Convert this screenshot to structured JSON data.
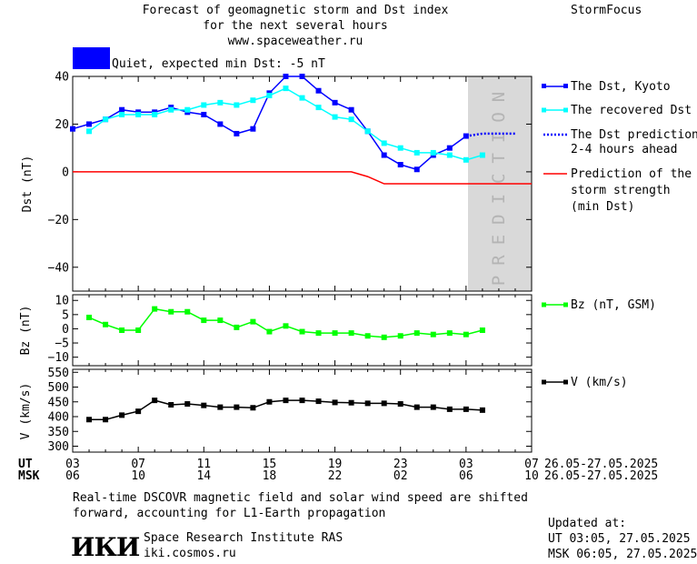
{
  "header": {
    "title_line1": "Forecast of geomagnetic storm and Dst index",
    "title_line2": "for the next several hours",
    "url": "www.spaceweather.ru",
    "brand": "StormFocus"
  },
  "status": {
    "text": "Quiet, expected min Dst: -5 nT",
    "color": "#0000ff"
  },
  "chart_data": [
    {
      "type": "line",
      "ylabel": "Dst (nT)",
      "ylim": [
        -50,
        40
      ],
      "yticks": [
        40,
        20,
        0,
        -20,
        -40
      ],
      "xlim": [
        3,
        31
      ],
      "overlay_label": "PREDICTION",
      "overlay_range": [
        27,
        31
      ],
      "series": [
        {
          "name": "The Dst, Kyoto",
          "color": "#0000ff",
          "style": "line-square",
          "x": [
            3,
            4,
            5,
            6,
            7,
            8,
            9,
            10,
            11,
            12,
            13,
            14,
            15,
            16,
            17,
            18,
            19,
            20,
            21,
            22,
            23,
            24,
            25,
            26,
            27
          ],
          "values": [
            18,
            20,
            22,
            26,
            25,
            25,
            27,
            25,
            24,
            20,
            16,
            18,
            33,
            40,
            40,
            34,
            29,
            26,
            17,
            7,
            3,
            1,
            7,
            10,
            15
          ]
        },
        {
          "name": "The recovered Dst",
          "color": "#00ffff",
          "style": "line-square",
          "x": [
            4,
            5,
            6,
            7,
            8,
            9,
            10,
            11,
            12,
            13,
            14,
            15,
            16,
            17,
            18,
            19,
            20,
            21,
            22,
            23,
            24,
            25,
            26,
            27,
            28
          ],
          "values": [
            17,
            22,
            24,
            24,
            24,
            26,
            26,
            28,
            29,
            28,
            30,
            32,
            35,
            31,
            27,
            23,
            22,
            17,
            12,
            10,
            8,
            8,
            7,
            5,
            7
          ]
        },
        {
          "name": "The Dst prediction 2-4 hours ahead",
          "color": "#0000ff",
          "style": "dotted",
          "x": [
            27,
            28,
            29,
            30
          ],
          "values": [
            15,
            16,
            16,
            16
          ]
        },
        {
          "name": "Prediction of the storm strength (min Dst)",
          "color": "#ff0000",
          "style": "line",
          "x": [
            3,
            20,
            21,
            22,
            31
          ],
          "values": [
            0,
            0,
            -2,
            -5,
            -5
          ]
        }
      ]
    },
    {
      "type": "line",
      "ylabel": "Bz (nT)",
      "ylim": [
        -13,
        12
      ],
      "yticks": [
        10,
        5,
        0,
        -5,
        -10
      ],
      "xlim": [
        3,
        31
      ],
      "series": [
        {
          "name": "Bz (nT, GSM)",
          "color": "#00ff00",
          "style": "line-square",
          "x": [
            4,
            5,
            6,
            7,
            8,
            9,
            10,
            11,
            12,
            13,
            14,
            15,
            16,
            17,
            18,
            19,
            20,
            21,
            22,
            23,
            24,
            25,
            26,
            27,
            28
          ],
          "values": [
            4,
            1.5,
            -0.5,
            -0.5,
            7,
            6,
            6,
            3,
            3,
            0.5,
            2.5,
            -1,
            1,
            -1,
            -1.5,
            -1.5,
            -1.5,
            -2.5,
            -3,
            -2.5,
            -1.5,
            -2,
            -1.5,
            -2,
            -0.5
          ]
        }
      ]
    },
    {
      "type": "line",
      "ylabel": "V (km/s)",
      "ylim": [
        280,
        560
      ],
      "yticks": [
        550,
        500,
        450,
        400,
        350,
        300
      ],
      "xlim": [
        3,
        31
      ],
      "series": [
        {
          "name": "V (km/s)",
          "color": "#000000",
          "style": "line-square",
          "x": [
            4,
            5,
            6,
            7,
            8,
            9,
            10,
            11,
            12,
            13,
            14,
            15,
            16,
            17,
            18,
            19,
            20,
            21,
            22,
            23,
            24,
            25,
            26,
            27,
            28
          ],
          "values": [
            390,
            390,
            405,
            418,
            455,
            440,
            443,
            438,
            432,
            432,
            430,
            450,
            455,
            455,
            452,
            448,
            447,
            445,
            445,
            443,
            432,
            432,
            425,
            425,
            422
          ]
        }
      ]
    }
  ],
  "xaxis": {
    "ut_label": "UT",
    "msk_label": "MSK",
    "ut_ticks": [
      "03",
      "07",
      "11",
      "15",
      "19",
      "23",
      "03",
      "07"
    ],
    "msk_ticks": [
      "06",
      "10",
      "14",
      "18",
      "22",
      "02",
      "06",
      "10"
    ],
    "date_range_ut": "26.05-27.05.2025",
    "date_range_msk": "26.05-27.05.2025"
  },
  "legend": {
    "dst_kyoto": "The Dst, Kyoto",
    "recovered": "The recovered Dst",
    "prediction_l1": "The Dst prediction",
    "prediction_l2": "2-4 hours ahead",
    "storm_l1": "Prediction of the",
    "storm_l2": "storm strength",
    "storm_l3": "(min Dst)",
    "bz": "Bz (nT, GSM)",
    "v": "V (km/s)"
  },
  "footer": {
    "note_line1": "Real-time DSCOVR magnetic field and solar wind speed are shifted",
    "note_line2": "forward, accounting for L1-Earth propagation",
    "institute_logo": "ИКИ",
    "institute_name": "Space Research Institute RAS",
    "institute_url": "iki.cosmos.ru",
    "updated_label": "Updated at:",
    "updated_ut": "UT  03:05, 27.05.2025",
    "updated_msk": "MSK 06:05, 27.05.2025"
  }
}
